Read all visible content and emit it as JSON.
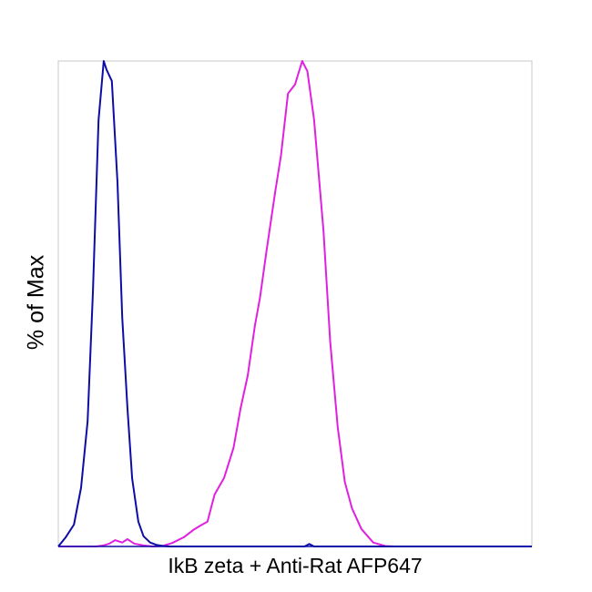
{
  "chart_data": {
    "type": "line",
    "title": "",
    "xlabel": "IkB zeta + Anti-Rat AFP647",
    "ylabel": "% of Max",
    "xlim": [
      0,
      100
    ],
    "ylim": [
      0,
      100
    ],
    "grid": false,
    "legend": "none",
    "series": [
      {
        "color": "#0d0da6",
        "x": [
          0,
          1.5,
          3.3,
          4.8,
          6.2,
          7.3,
          8.5,
          9.6,
          10.2,
          11.3,
          12.5,
          13.5,
          14.6,
          15.6,
          16.9,
          18,
          19.4,
          20.8,
          22.2,
          23.5,
          25,
          27,
          30,
          35,
          40,
          45,
          50,
          52,
          53,
          54,
          60,
          70,
          80,
          90,
          100
        ],
        "y": [
          0,
          1.8,
          4.5,
          12.1,
          25.8,
          52.3,
          87.8,
          100,
          98.2,
          95.9,
          75,
          47.2,
          28.6,
          14,
          5.1,
          2.1,
          0.8,
          0.3,
          0.1,
          0,
          0,
          0,
          0,
          0,
          0,
          0,
          0,
          0,
          0.5,
          0,
          0,
          0,
          0,
          0,
          0
        ]
      },
      {
        "color": "#e020e0",
        "x": [
          0,
          3,
          6,
          8,
          9.5,
          10.8,
          12,
          13.5,
          14.6,
          16,
          18,
          20,
          22,
          24,
          26.5,
          28.5,
          30,
          31.5,
          33,
          35,
          37,
          38.5,
          40,
          41.5,
          42.6,
          44,
          45.8,
          47,
          48.5,
          50,
          51.5,
          52.6,
          54,
          56,
          57.4,
          59,
          60.5,
          62,
          64,
          66.5,
          69,
          71,
          73,
          75,
          80,
          90,
          100
        ],
        "y": [
          0,
          0,
          0,
          0,
          0.2,
          0.6,
          1.3,
          0.8,
          1.5,
          0.6,
          0.2,
          0,
          0.1,
          0.7,
          1.9,
          3.4,
          4.3,
          5.1,
          10.7,
          14.1,
          20.3,
          28.5,
          35.2,
          45.4,
          51.3,
          61.1,
          73.1,
          80.4,
          93.3,
          95.2,
          100,
          97.9,
          88,
          65,
          42.3,
          24.6,
          13.3,
          7.9,
          3.6,
          0.8,
          0.1,
          0,
          0,
          0,
          0,
          0,
          0
        ]
      }
    ]
  }
}
